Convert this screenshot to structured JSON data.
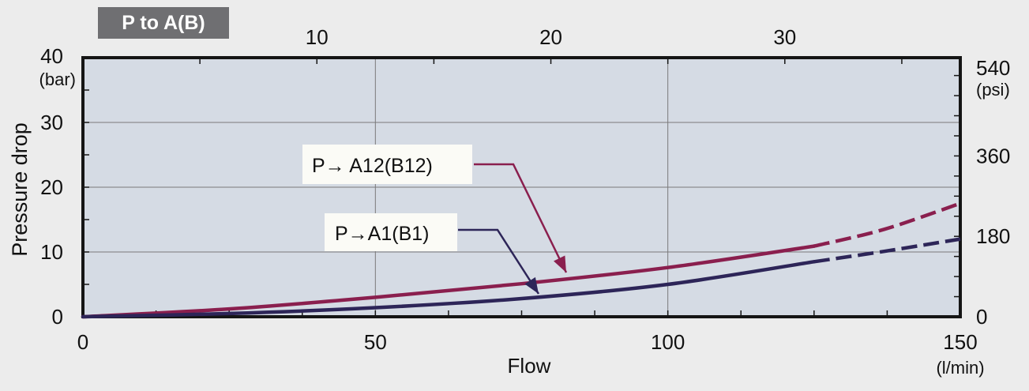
{
  "badge": "P to A(B)",
  "colors": {
    "background": "#ececec",
    "plot_bg": "#d5dbe4",
    "badge_bg": "#6f6f72",
    "series_A12": "#8a1f4e",
    "series_A1": "#2d2558",
    "grid": "#7a7a7a",
    "frame": "#151515",
    "label_box": "#fbfbf6"
  },
  "chart_data": {
    "type": "line",
    "xlabel": "Flow",
    "x_unit": "(l/min)",
    "ylabel": "Pressure drop",
    "y_unit": "(bar)",
    "y2_unit": "(psi)",
    "xlim": [
      0,
      150
    ],
    "ylim": [
      0,
      40
    ],
    "x_ticks": [
      0,
      50,
      100,
      150
    ],
    "y_ticks": [
      0,
      10,
      20,
      30,
      40
    ],
    "top_ticks": [
      10,
      20,
      30
    ],
    "right_ticks": [
      0,
      180,
      360,
      540
    ],
    "grid": true,
    "series": [
      {
        "name": "P→ A12(B12)",
        "color": "#8a1f4e",
        "x": [
          0,
          25,
          50,
          75,
          100,
          125
        ],
        "y": [
          0,
          1.2,
          3.0,
          5.1,
          7.6,
          10.9
        ],
        "dashed_x": [
          125,
          137,
          150
        ],
        "dashed_y": [
          10.9,
          13.5,
          17.5
        ]
      },
      {
        "name": "P→A1(B1)",
        "color": "#2d2558",
        "x": [
          0,
          25,
          50,
          75,
          100,
          125
        ],
        "y": [
          0,
          0.5,
          1.4,
          2.8,
          5.0,
          8.5
        ],
        "dashed_x": [
          125,
          137,
          150
        ],
        "dashed_y": [
          8.5,
          10.1,
          12.0
        ]
      }
    ]
  }
}
